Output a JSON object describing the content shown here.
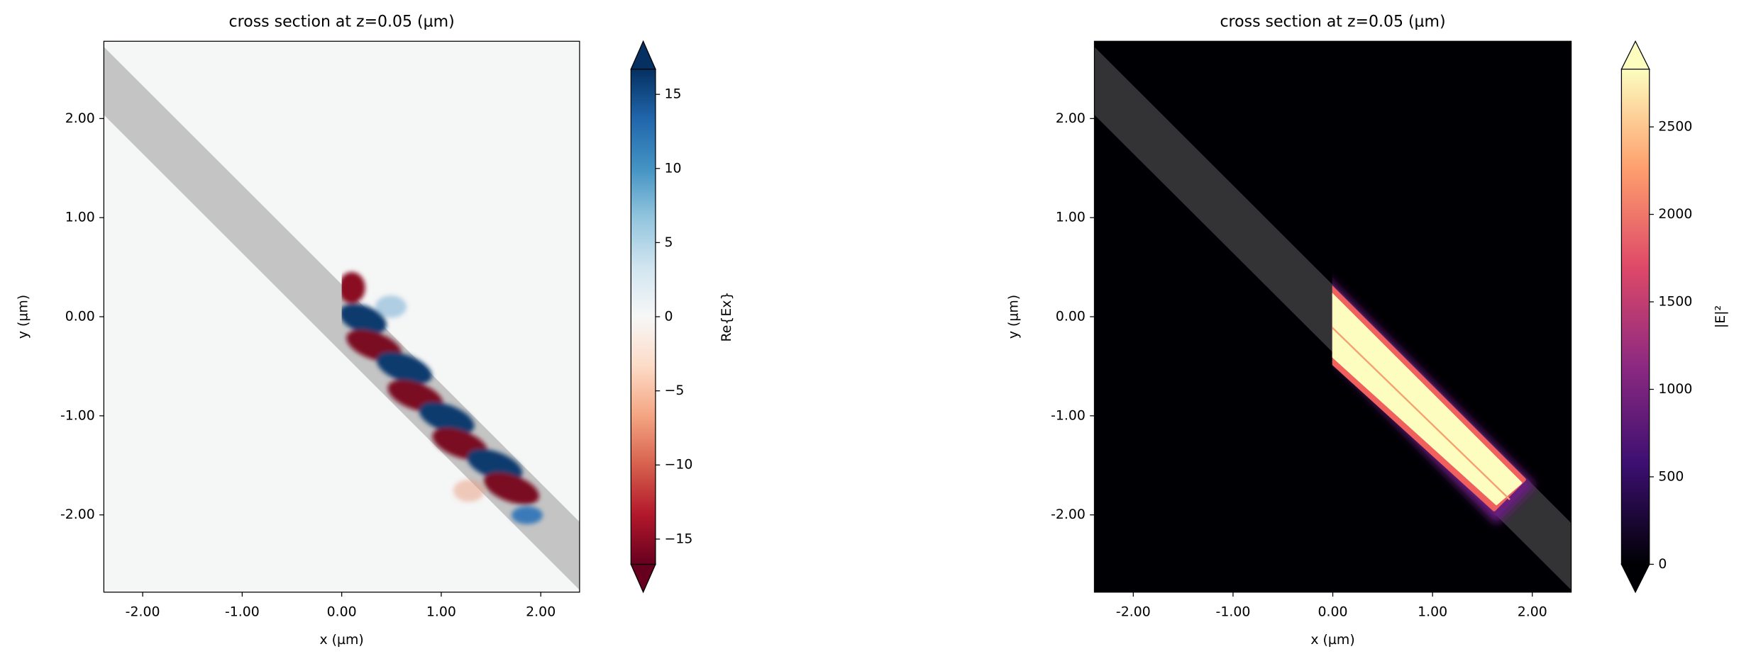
{
  "chart_data": [
    {
      "type": "heatmap",
      "title": "cross section at z=0.05 (µm)",
      "x_label": "x (µm)",
      "y_label": "y (µm)",
      "xlim": [
        -2.39,
        2.39
      ],
      "ylim": [
        -2.78,
        2.78
      ],
      "xticks": [
        {
          "value": -2,
          "label": "-2.00"
        },
        {
          "value": -1,
          "label": "-1.00"
        },
        {
          "value": 0,
          "label": "0.00"
        },
        {
          "value": 1,
          "label": "1.00"
        },
        {
          "value": 2,
          "label": "2.00"
        }
      ],
      "yticks": [
        {
          "value": -2,
          "label": "-2.00"
        },
        {
          "value": -1,
          "label": "-1.00"
        },
        {
          "value": 0,
          "label": "0.00"
        },
        {
          "value": 1,
          "label": "1.00"
        },
        {
          "value": 2,
          "label": "2.00"
        }
      ],
      "colorbar_label": "Re{Ex}",
      "clim": [
        -16.7,
        16.7
      ],
      "cticks": [
        {
          "value": -15,
          "label": "−15"
        },
        {
          "value": -10,
          "label": "−10"
        },
        {
          "value": -5,
          "label": "−5"
        },
        0,
        5,
        10,
        15
      ],
      "colormap": [
        "#67001f",
        "#b2182b",
        "#d6604d",
        "#f4a582",
        "#fddbc7",
        "#f7f7f7",
        "#d1e5f0",
        "#92c5de",
        "#4393c3",
        "#2166ac",
        "#053061"
      ]
    },
    {
      "type": "heatmap",
      "title": "cross section at z=0.05 (µm)",
      "x_label": "x (µm)",
      "y_label": "y (µm)",
      "xlim": [
        -2.39,
        2.39
      ],
      "ylim": [
        -2.78,
        2.78
      ],
      "xticks": [
        {
          "value": -2,
          "label": "-2.00"
        },
        {
          "value": -1,
          "label": "-1.00"
        },
        {
          "value": 0,
          "label": "0.00"
        },
        {
          "value": 1,
          "label": "1.00"
        },
        {
          "value": 2,
          "label": "2.00"
        }
      ],
      "yticks": [
        {
          "value": -2,
          "label": "-2.00"
        },
        {
          "value": -1,
          "label": "-1.00"
        },
        {
          "value": 0,
          "label": "0.00"
        },
        {
          "value": 1,
          "label": "1.00"
        },
        {
          "value": 2,
          "label": "2.00"
        }
      ],
      "colorbar_label": "|E|²",
      "clim": [
        0,
        2830
      ],
      "cticks": [
        0,
        500,
        1000,
        1500,
        2000,
        2500
      ],
      "colormap": [
        "#000004",
        "#3b0f70",
        "#8c2981",
        "#de4968",
        "#fe9f6d",
        "#fcfdbf"
      ]
    }
  ]
}
